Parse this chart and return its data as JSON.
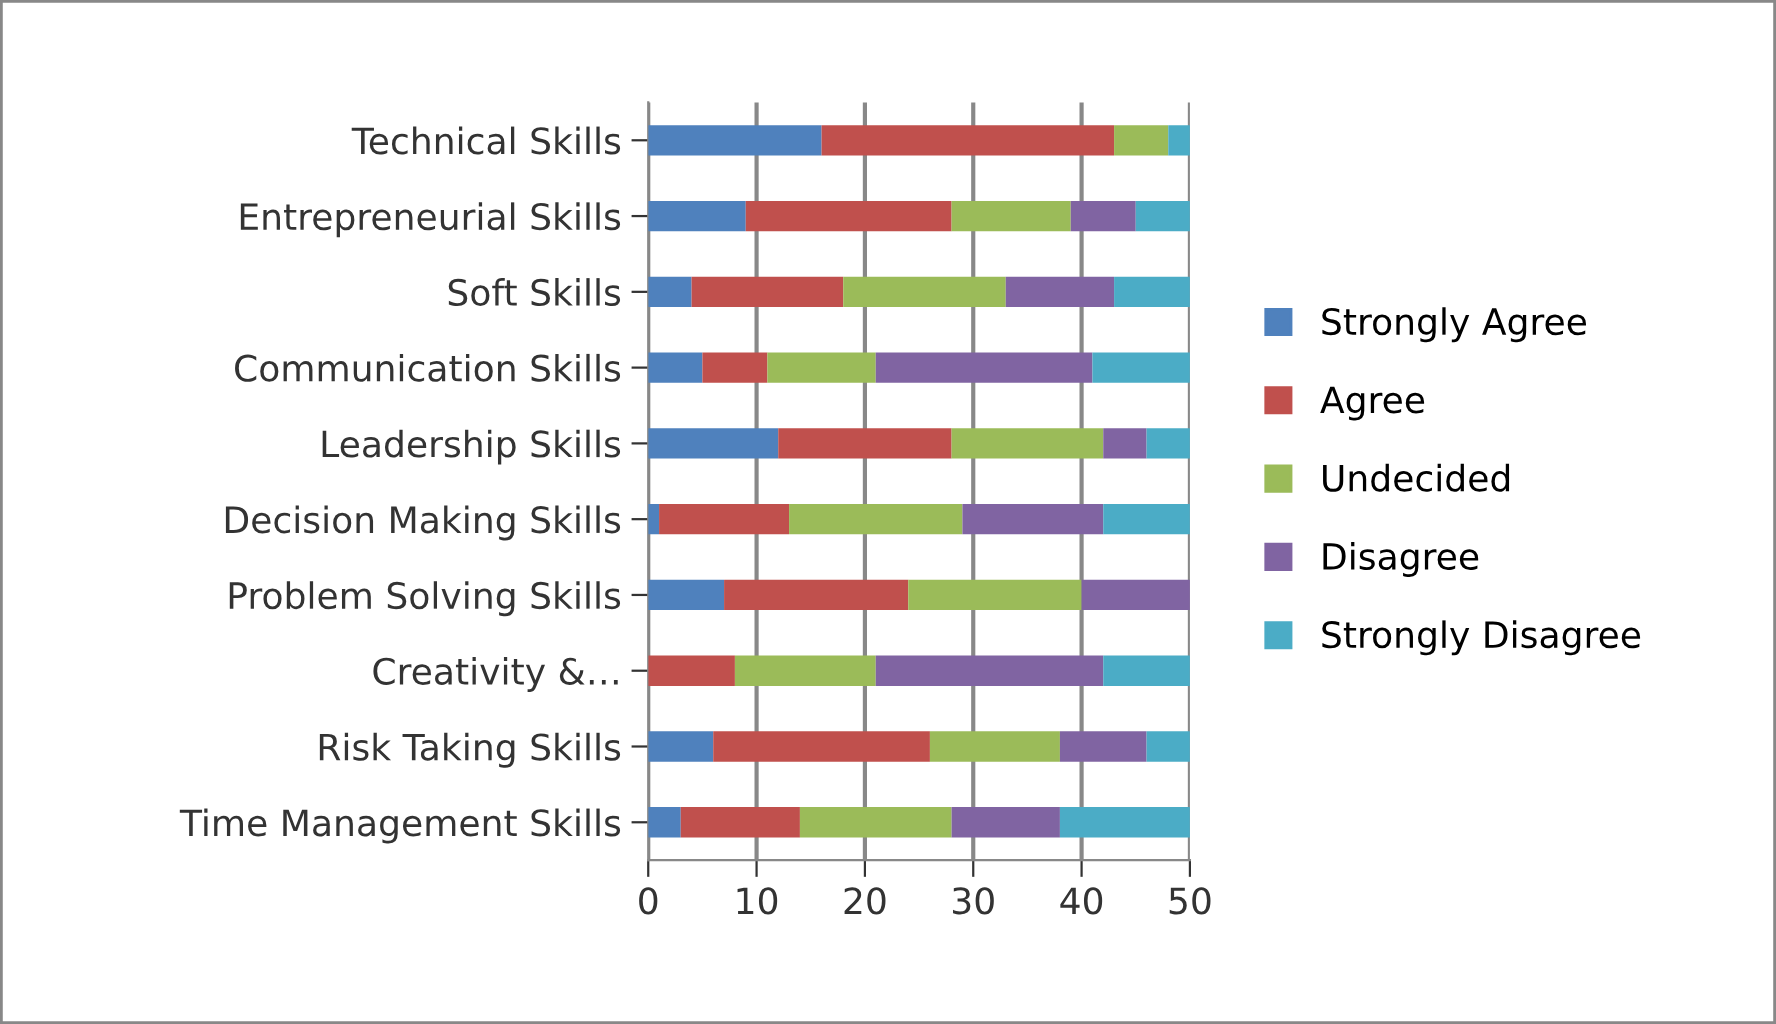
{
  "chart_data": {
    "type": "bar",
    "orientation": "horizontal",
    "stacked": true,
    "categories": [
      "Technical Skills",
      "Entrepreneurial Skills",
      "Soft Skills",
      "Communication Skills",
      "Leadership Skills",
      "Decision Making Skills",
      "Problem Solving Skills",
      "Creativity &…",
      "Risk Taking Skills",
      "Time Management Skills"
    ],
    "series": [
      {
        "name": "Strongly Agree",
        "color": "#4f81bd",
        "values": [
          16,
          9,
          4,
          5,
          12,
          1,
          7,
          0,
          6,
          3
        ]
      },
      {
        "name": "Agree",
        "color": "#c0504d",
        "values": [
          27,
          19,
          14,
          6,
          16,
          12,
          17,
          8,
          20,
          11
        ]
      },
      {
        "name": "Undecided",
        "color": "#9bbb59",
        "values": [
          5,
          11,
          15,
          10,
          14,
          16,
          16,
          13,
          12,
          14
        ]
      },
      {
        "name": "Disagree",
        "color": "#8064a2",
        "values": [
          0,
          6,
          10,
          20,
          4,
          13,
          10,
          21,
          8,
          10
        ]
      },
      {
        "name": "Strongly Disagree",
        "color": "#4bacc6",
        "values": [
          2,
          5,
          7,
          9,
          4,
          8,
          0,
          8,
          4,
          12
        ]
      }
    ],
    "xlim": [
      0,
      50
    ],
    "xticks": [
      0,
      10,
      20,
      30,
      40,
      50
    ],
    "grid": "x",
    "legend": "right"
  }
}
